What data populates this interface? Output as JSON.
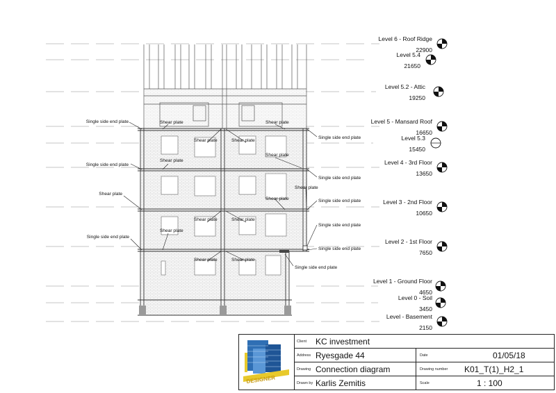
{
  "levels": [
    {
      "name": "Level 6 - Roof Ridge",
      "elevation": "22900"
    },
    {
      "name": "Level 5.4",
      "elevation": "21650"
    },
    {
      "name": "Level 5.2 - Attic",
      "elevation": "19250"
    },
    {
      "name": "Level 5 - Mansard Roof",
      "elevation": "16650"
    },
    {
      "name": "Level 5.3",
      "elevation": "15450"
    },
    {
      "name": "Level 4 - 3rd Floor",
      "elevation": "13650"
    },
    {
      "name": "Level 3 - 2nd Floor",
      "elevation": "10650"
    },
    {
      "name": "Level 2 - 1st Floor",
      "elevation": "7650"
    },
    {
      "name": "Level 1 - Ground Floor",
      "elevation": "4650"
    },
    {
      "name": "Level 0 - Soil",
      "elevation": "3450"
    },
    {
      "name": "Level - Basement",
      "elevation": "2150"
    }
  ],
  "callouts": {
    "shear_plate": "Shear plate",
    "single_side_end_plate": "Single side end plate"
  },
  "title_block": {
    "logo_text": "DESIGNER",
    "client_label": "Client",
    "client": "KC investment",
    "address_label": "Address",
    "address": "Ryesgade 44",
    "date_label": "Date",
    "date": "01/05/18",
    "drawing_label": "Drawing",
    "drawing": "Connection diagram",
    "drawing_number_label": "Drawing number",
    "drawing_number": "K01_T(1)_H2_1",
    "drawn_by_label": "Drawn by",
    "drawn_by": "Karlis Zemitis",
    "scale_label": "Scale",
    "scale": "1 : 100"
  }
}
